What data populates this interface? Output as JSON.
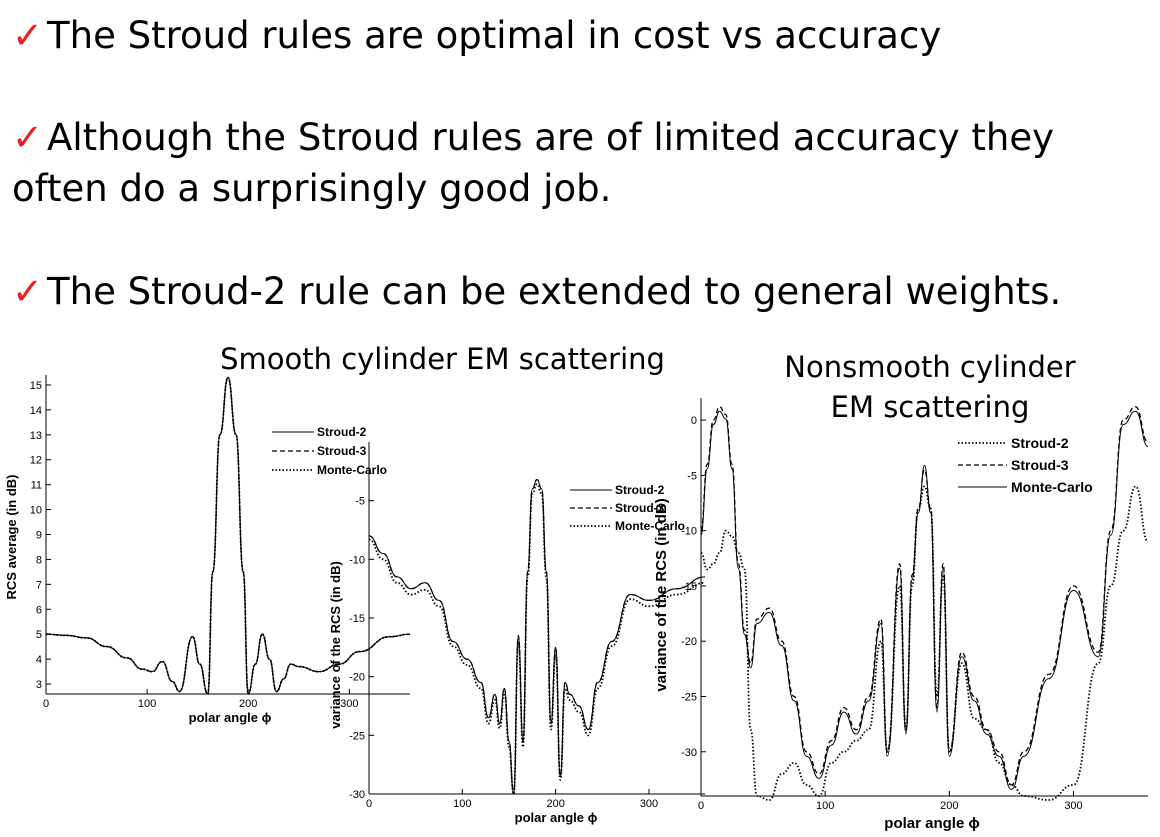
{
  "slide": {
    "check_glyph": "✓",
    "bullets": [
      {
        "text": "The Stroud rules are optimal in cost vs accuracy"
      },
      {
        "line1": "Although the Stroud rules are of limited accuracy they",
        "line2": "often do a surprisingly good job."
      },
      {
        "text": "The Stroud-2 rule can be extended to general weights."
      }
    ],
    "smooth_heading": "Smooth cylinder EM scattering",
    "nonsmooth_heading_line1": "Nonsmooth cylinder",
    "nonsmooth_heading_line2": "EM scattering"
  },
  "chart_data": [
    {
      "type": "line",
      "xlabel": "polar angle ϕ",
      "ylabel": "RCS average (in dB)",
      "xlim": [
        0,
        360
      ],
      "ylim": [
        2.6,
        15.4
      ],
      "xticks": [
        0,
        100,
        200,
        300
      ],
      "yticks": [
        3,
        4,
        5,
        6,
        7,
        8,
        9,
        10,
        11,
        12,
        13,
        14,
        15
      ],
      "legend_position": "top-right",
      "series": [
        {
          "name": "Stroud-2",
          "style": "solid",
          "x": [
            0,
            20,
            40,
            60,
            80,
            95,
            105,
            115,
            125,
            132,
            145,
            152,
            160,
            165,
            172,
            180,
            188,
            195,
            200,
            207,
            214,
            221,
            228,
            235,
            242,
            250,
            270,
            290,
            310,
            340,
            360
          ],
          "y": [
            5,
            4.95,
            4.85,
            4.5,
            4.05,
            3.6,
            3.5,
            3.9,
            3.1,
            2.7,
            4.9,
            3.8,
            2.6,
            7.5,
            13,
            15.3,
            13,
            7.5,
            2.6,
            3.8,
            5,
            4.0,
            2.7,
            3.2,
            3.8,
            3.7,
            3.5,
            3.8,
            4.3,
            4.9,
            5
          ]
        },
        {
          "name": "Stroud-3",
          "style": "dashed",
          "x": [
            0,
            20,
            40,
            60,
            80,
            95,
            105,
            115,
            125,
            132,
            145,
            152,
            160,
            165,
            172,
            180,
            188,
            195,
            200,
            207,
            214,
            221,
            228,
            235,
            242,
            250,
            270,
            290,
            310,
            340,
            360
          ],
          "y": [
            5,
            4.95,
            4.85,
            4.5,
            4.05,
            3.6,
            3.5,
            3.9,
            3.1,
            2.7,
            4.9,
            3.8,
            2.6,
            7.5,
            13,
            15.3,
            13,
            7.5,
            2.6,
            3.8,
            5,
            4.0,
            2.7,
            3.2,
            3.8,
            3.7,
            3.5,
            3.8,
            4.3,
            4.9,
            5
          ]
        },
        {
          "name": "Monte-Carlo",
          "style": "dotted",
          "x": [
            0,
            20,
            40,
            60,
            80,
            95,
            105,
            115,
            125,
            132,
            145,
            152,
            160,
            165,
            172,
            180,
            188,
            195,
            200,
            207,
            214,
            221,
            228,
            235,
            242,
            250,
            270,
            290,
            310,
            340,
            360
          ],
          "y": [
            5,
            4.95,
            4.85,
            4.5,
            4.05,
            3.6,
            3.5,
            3.9,
            3.1,
            2.7,
            4.9,
            3.8,
            2.6,
            7.5,
            13,
            15.3,
            13,
            7.5,
            2.6,
            3.8,
            5,
            4.0,
            2.7,
            3.2,
            3.8,
            3.7,
            3.5,
            3.8,
            4.3,
            4.9,
            5
          ]
        }
      ]
    },
    {
      "type": "line",
      "xlabel": "polar angle ϕ",
      "ylabel": "variance of the RCS (in dB)",
      "xlim": [
        0,
        360
      ],
      "ylim": [
        -30,
        0
      ],
      "xticks": [
        0,
        100,
        200,
        300
      ],
      "yticks": [
        -5,
        -10,
        -15,
        -20,
        -25,
        -30
      ],
      "legend_position": "top-right",
      "series": [
        {
          "name": "Stroud-2",
          "style": "solid",
          "x": [
            0,
            15,
            30,
            45,
            60,
            75,
            90,
            105,
            120,
            128,
            135,
            140,
            145,
            150,
            155,
            160,
            165,
            170,
            175,
            180,
            185,
            190,
            195,
            200,
            205,
            210,
            215,
            225,
            235,
            245,
            260,
            280,
            300,
            330,
            360
          ],
          "y": [
            -8,
            -9.5,
            -11.5,
            -12.5,
            -12,
            -13.5,
            -17,
            -18.5,
            -20.5,
            -23.5,
            -21.5,
            -24,
            -21,
            -25.5,
            -30,
            -16.5,
            -25.5,
            -11,
            -4,
            -3.2,
            -4,
            -11,
            -24,
            -17.5,
            -28.5,
            -20.5,
            -21.5,
            -22.5,
            -24.5,
            -20.5,
            -17,
            -13,
            -13.5,
            -12.5,
            -11.5
          ]
        },
        {
          "name": "Stroud-3",
          "style": "dashed",
          "x": [
            0,
            15,
            30,
            45,
            60,
            75,
            90,
            105,
            120,
            128,
            135,
            140,
            145,
            150,
            155,
            160,
            165,
            170,
            175,
            180,
            185,
            190,
            195,
            200,
            205,
            210,
            215,
            225,
            235,
            245,
            260,
            280,
            300,
            330,
            360
          ],
          "y": [
            -8,
            -9.5,
            -11.5,
            -12.5,
            -12,
            -13.5,
            -17,
            -18.5,
            -20.5,
            -23.5,
            -21.5,
            -24,
            -21,
            -25.5,
            -30,
            -16.5,
            -25.5,
            -11,
            -4,
            -3.2,
            -4,
            -11,
            -24,
            -17.5,
            -28.5,
            -20.5,
            -21.5,
            -22.5,
            -24.5,
            -20.5,
            -17,
            -13,
            -13.5,
            -12.5,
            -11.5
          ]
        },
        {
          "name": "Monte-Carlo",
          "style": "dotted",
          "x": [
            0,
            15,
            30,
            45,
            60,
            75,
            90,
            105,
            120,
            128,
            135,
            140,
            145,
            150,
            155,
            160,
            165,
            170,
            175,
            180,
            185,
            190,
            195,
            200,
            205,
            210,
            215,
            225,
            235,
            245,
            260,
            280,
            300,
            330,
            360
          ],
          "y": [
            -8.3,
            -10,
            -12,
            -13,
            -12.6,
            -14,
            -17.4,
            -19,
            -21,
            -24,
            -22,
            -24.4,
            -21.4,
            -26,
            -30,
            -17,
            -26,
            -11.5,
            -4.4,
            -3.6,
            -4.4,
            -11.5,
            -24.5,
            -18,
            -28.8,
            -21,
            -22,
            -23,
            -25,
            -21,
            -17.4,
            -13.4,
            -14,
            -13,
            -12
          ]
        }
      ]
    },
    {
      "type": "line",
      "xlabel": "polar angle ϕ",
      "ylabel": "variance of the RCS (in dB)",
      "xlim": [
        0,
        360
      ],
      "ylim": [
        -34,
        2
      ],
      "xticks": [
        0,
        100,
        200,
        300
      ],
      "yticks": [
        0,
        -5,
        -10,
        -15,
        -20,
        -25,
        -30
      ],
      "legend_position": "top-right",
      "series": [
        {
          "name": "Stroud-2",
          "style": "dotted",
          "x": [
            0,
            5,
            10,
            15,
            20,
            25,
            30,
            35,
            40,
            45,
            55,
            65,
            75,
            85,
            95,
            105,
            115,
            125,
            135,
            145,
            150,
            160,
            165,
            170,
            175,
            180,
            185,
            190,
            195,
            200,
            210,
            220,
            230,
            240,
            250,
            260,
            280,
            300,
            320,
            330,
            340,
            350,
            360
          ],
          "y": [
            -12,
            -13.5,
            -13,
            -12,
            -10,
            -10.5,
            -12,
            -13.5,
            -28,
            -34,
            -36,
            -32,
            -31,
            -33,
            -34,
            -31,
            -30,
            -29,
            -28,
            -20,
            -30,
            -15,
            -28,
            -15,
            -8,
            -6,
            -8,
            -25,
            -14,
            -30,
            -22,
            -27,
            -28,
            -31,
            -33,
            -34,
            -36,
            -33,
            -22,
            -15,
            -10,
            -6,
            -11
          ]
        },
        {
          "name": "Stroud-3",
          "style": "dashed",
          "x": [
            0,
            5,
            10,
            15,
            20,
            25,
            30,
            35,
            40,
            45,
            55,
            65,
            75,
            85,
            95,
            105,
            115,
            125,
            135,
            145,
            150,
            160,
            165,
            170,
            175,
            180,
            185,
            190,
            195,
            200,
            210,
            220,
            230,
            240,
            250,
            260,
            280,
            300,
            320,
            330,
            340,
            350,
            360
          ],
          "y": [
            -10,
            -4,
            0,
            1.2,
            0.5,
            -4,
            -13,
            -19,
            -22,
            -18,
            -17,
            -20,
            -25,
            -30,
            -32,
            -29,
            -26,
            -28,
            -25,
            -18,
            -30,
            -13,
            -28,
            -14,
            -8,
            -4.5,
            -8,
            -26,
            -13,
            -30,
            -21,
            -25,
            -28,
            -30,
            -33,
            -30,
            -23,
            -15,
            -21,
            -10,
            0,
            1.2,
            -2
          ]
        },
        {
          "name": "Monte-Carlo",
          "style": "solid",
          "x": [
            0,
            5,
            10,
            15,
            20,
            25,
            30,
            35,
            40,
            45,
            55,
            65,
            75,
            85,
            95,
            105,
            115,
            125,
            135,
            145,
            150,
            160,
            165,
            170,
            175,
            180,
            185,
            190,
            195,
            200,
            210,
            220,
            230,
            240,
            250,
            260,
            280,
            300,
            320,
            330,
            340,
            350,
            360
          ],
          "y": [
            -10.4,
            -4.4,
            -0.4,
            0.8,
            0.1,
            -4.4,
            -13.4,
            -19.4,
            -22.4,
            -18.4,
            -17.4,
            -20.4,
            -25.4,
            -30.4,
            -32.4,
            -29.4,
            -26.4,
            -28.4,
            -25.4,
            -18.4,
            -30.4,
            -13.4,
            -28.4,
            -14.4,
            -8.4,
            -4.1,
            -8.4,
            -26.4,
            -13.4,
            -30.4,
            -21.4,
            -25.4,
            -28.4,
            -30.4,
            -33.4,
            -30.4,
            -23.4,
            -15.4,
            -21.4,
            -10.4,
            -0.4,
            0.8,
            -2.4
          ]
        }
      ]
    }
  ]
}
